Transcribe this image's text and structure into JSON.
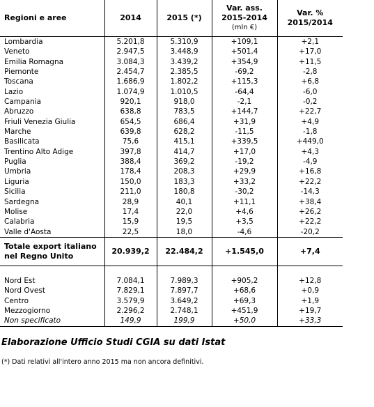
{
  "header": {
    "col1": "Regioni e aree",
    "col2": "2014",
    "col3": "2015 (*)",
    "col4_line1": "Var. ass.",
    "col4_line2": "2015-2014",
    "col4_unit": "(mln €)",
    "col5_line1": "Var. %",
    "col5_line2": "2015/2014"
  },
  "regions": [
    {
      "name": "Lombardia",
      "v2014": "5.201,8",
      "v2015": "5.310,9",
      "abs": "+109,1",
      "pct": "+2,1"
    },
    {
      "name": "Veneto",
      "v2014": "2.947,5",
      "v2015": "3.448,9",
      "abs": "+501,4",
      "pct": "+17,0"
    },
    {
      "name": "Emilia Romagna",
      "v2014": "3.084,3",
      "v2015": "3.439,2",
      "abs": "+354,9",
      "pct": "+11,5"
    },
    {
      "name": "Piemonte",
      "v2014": "2.454,7",
      "v2015": "2.385,5",
      "abs": "-69,2",
      "pct": "-2,8"
    },
    {
      "name": "Toscana",
      "v2014": "1.686,9",
      "v2015": "1.802,2",
      "abs": "+115,3",
      "pct": "+6,8"
    },
    {
      "name": "Lazio",
      "v2014": "1.074,9",
      "v2015": "1.010,5",
      "abs": "-64,4",
      "pct": "-6,0"
    },
    {
      "name": "Campania",
      "v2014": "920,1",
      "v2015": "918,0",
      "abs": "-2,1",
      "pct": "-0,2"
    },
    {
      "name": "Abruzzo",
      "v2014": "638,8",
      "v2015": "783,5",
      "abs": "+144,7",
      "pct": "+22,7"
    },
    {
      "name": "Friuli Venezia Giulia",
      "v2014": "654,5",
      "v2015": "686,4",
      "abs": "+31,9",
      "pct": "+4,9"
    },
    {
      "name": "Marche",
      "v2014": "639,8",
      "v2015": "628,2",
      "abs": "-11,5",
      "pct": "-1,8"
    },
    {
      "name": "Basilicata",
      "v2014": "75,6",
      "v2015": "415,1",
      "abs": "+339,5",
      "pct": "+449,0"
    },
    {
      "name": "Trentino Alto Adige",
      "v2014": "397,8",
      "v2015": "414,7",
      "abs": "+17,0",
      "pct": "+4,3"
    },
    {
      "name": "Puglia",
      "v2014": "388,4",
      "v2015": "369,2",
      "abs": "-19,2",
      "pct": "-4,9"
    },
    {
      "name": "Umbria",
      "v2014": "178,4",
      "v2015": "208,3",
      "abs": "+29,9",
      "pct": "+16,8"
    },
    {
      "name": "Liguria",
      "v2014": "150,0",
      "v2015": "183,3",
      "abs": "+33,2",
      "pct": "+22,2"
    },
    {
      "name": "Sicilia",
      "v2014": "211,0",
      "v2015": "180,8",
      "abs": "-30,2",
      "pct": "-14,3"
    },
    {
      "name": "Sardegna",
      "v2014": "28,9",
      "v2015": "40,1",
      "abs": "+11,1",
      "pct": "+38,4"
    },
    {
      "name": "Molise",
      "v2014": "17,4",
      "v2015": "22,0",
      "abs": "+4,6",
      "pct": "+26,2"
    },
    {
      "name": "Calabria",
      "v2014": "15,9",
      "v2015": "19,5",
      "abs": "+3,5",
      "pct": "+22,2"
    },
    {
      "name": "Valle d'Aosta",
      "v2014": "22,5",
      "v2015": "18,0",
      "abs": "-4,6",
      "pct": "-20,2"
    }
  ],
  "total": {
    "name_line1": "Totale export italiano",
    "name_line2": "nel Regno Unito",
    "v2014": "20.939,2",
    "v2015": "22.484,2",
    "abs": "+1.545,0",
    "pct": "+7,4"
  },
  "areas": [
    {
      "name": "Nord Est",
      "v2014": "7.084,1",
      "v2015": "7.989,3",
      "abs": "+905,2",
      "pct": "+12,8"
    },
    {
      "name": "Nord Ovest",
      "v2014": "7.829,1",
      "v2015": "7.897,7",
      "abs": "+68,6",
      "pct": "+0,9"
    },
    {
      "name": "Centro",
      "v2014": "3.579,9",
      "v2015": "3.649,2",
      "abs": "+69,3",
      "pct": "+1,9"
    },
    {
      "name": "Mezzogiorno",
      "v2014": "2.296,2",
      "v2015": "2.748,1",
      "abs": "+451,9",
      "pct": "+19,7"
    },
    {
      "name": "Non specificato",
      "v2014": "149,9",
      "v2015": "199,9",
      "abs": "+50,0",
      "pct": "+33,3"
    }
  ],
  "source": "Elaborazione Ufficio Studi CGIA su dati Istat",
  "note": "(*) Dati relativi all'intero anno 2015 ma non ancora definitivi."
}
